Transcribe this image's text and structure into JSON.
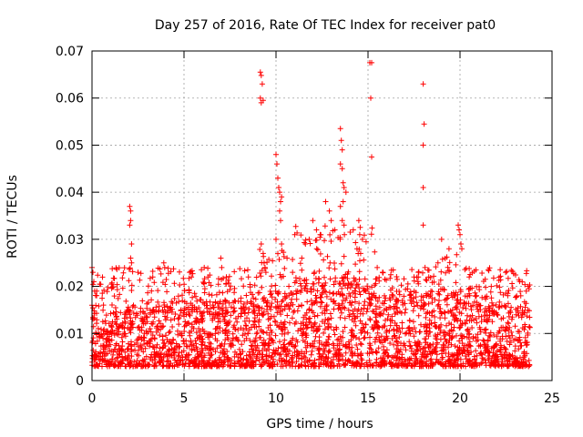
{
  "chart_data": {
    "type": "scatter",
    "title": "Day 257 of 2016, Rate Of TEC Index for receiver pat0",
    "xlabel": "GPS time / hours",
    "ylabel": "ROTI / TECUs",
    "xlim": [
      0,
      25
    ],
    "ylim": [
      0,
      0.07
    ],
    "x_ticks": [
      0,
      5,
      10,
      15,
      20,
      25
    ],
    "x_tick_labels": [
      "0",
      "5",
      "10",
      "15",
      "20",
      "25"
    ],
    "y_ticks": [
      0,
      0.01,
      0.02,
      0.03,
      0.04,
      0.05,
      0.06,
      0.07
    ],
    "y_tick_labels": [
      "0",
      "0.01",
      "0.02",
      "0.03",
      "0.04",
      "0.05",
      "0.06",
      "0.07"
    ],
    "grid": true,
    "marker": "+",
    "color": "#ff0000",
    "series": [
      {
        "name": "ROTI",
        "points": [
          [
            0.0,
            0.024
          ],
          [
            0.05,
            0.023
          ],
          [
            0.1,
            0.021
          ],
          [
            0.0,
            0.016
          ],
          [
            2.05,
            0.037
          ],
          [
            2.1,
            0.036
          ],
          [
            2.1,
            0.034
          ],
          [
            2.05,
            0.033
          ],
          [
            2.15,
            0.029
          ],
          [
            2.1,
            0.026
          ],
          [
            2.15,
            0.025
          ],
          [
            3.3,
            0.022
          ],
          [
            3.9,
            0.025
          ],
          [
            3.95,
            0.024
          ],
          [
            5.3,
            0.023
          ],
          [
            5.4,
            0.022
          ],
          [
            6.1,
            0.024
          ],
          [
            6.3,
            0.022
          ],
          [
            7.0,
            0.026
          ],
          [
            7.05,
            0.024
          ],
          [
            7.3,
            0.022
          ],
          [
            8.5,
            0.022
          ],
          [
            9.15,
            0.0655
          ],
          [
            9.2,
            0.0648
          ],
          [
            9.25,
            0.063
          ],
          [
            9.15,
            0.06
          ],
          [
            9.2,
            0.059
          ],
          [
            9.3,
            0.0595
          ],
          [
            9.2,
            0.029
          ],
          [
            9.3,
            0.027
          ],
          [
            9.35,
            0.025
          ],
          [
            9.4,
            0.024
          ],
          [
            9.45,
            0.023
          ],
          [
            10.0,
            0.048
          ],
          [
            10.05,
            0.046
          ],
          [
            10.1,
            0.043
          ],
          [
            10.15,
            0.041
          ],
          [
            10.2,
            0.04
          ],
          [
            10.3,
            0.039
          ],
          [
            10.25,
            0.038
          ],
          [
            10.2,
            0.036
          ],
          [
            10.25,
            0.034
          ],
          [
            10.0,
            0.03
          ],
          [
            10.3,
            0.029
          ],
          [
            10.6,
            0.026
          ],
          [
            10.9,
            0.023
          ],
          [
            11.4,
            0.026
          ],
          [
            11.6,
            0.029
          ],
          [
            11.8,
            0.03
          ],
          [
            12.0,
            0.034
          ],
          [
            12.2,
            0.032
          ],
          [
            12.4,
            0.031
          ],
          [
            12.7,
            0.038
          ],
          [
            12.9,
            0.036
          ],
          [
            13.0,
            0.034
          ],
          [
            13.2,
            0.032
          ],
          [
            13.5,
            0.0535
          ],
          [
            13.55,
            0.051
          ],
          [
            13.6,
            0.049
          ],
          [
            13.5,
            0.046
          ],
          [
            13.6,
            0.045
          ],
          [
            13.65,
            0.042
          ],
          [
            13.7,
            0.041
          ],
          [
            13.8,
            0.04
          ],
          [
            13.65,
            0.038
          ],
          [
            13.5,
            0.037
          ],
          [
            13.6,
            0.034
          ],
          [
            13.7,
            0.033
          ],
          [
            14.2,
            0.032
          ],
          [
            14.5,
            0.034
          ],
          [
            14.55,
            0.031
          ],
          [
            14.7,
            0.03
          ],
          [
            14.4,
            0.028
          ],
          [
            14.6,
            0.027
          ],
          [
            15.1,
            0.0675
          ],
          [
            15.2,
            0.0675
          ],
          [
            15.15,
            0.06
          ],
          [
            15.2,
            0.0475
          ],
          [
            15.5,
            0.024
          ],
          [
            15.8,
            0.023
          ],
          [
            17.5,
            0.022
          ],
          [
            18.0,
            0.063
          ],
          [
            18.05,
            0.0545
          ],
          [
            18.0,
            0.05
          ],
          [
            18.0,
            0.041
          ],
          [
            18.0,
            0.033
          ],
          [
            18.1,
            0.024
          ],
          [
            18.3,
            0.022
          ],
          [
            18.8,
            0.025
          ],
          [
            19.0,
            0.03
          ],
          [
            19.4,
            0.028
          ],
          [
            19.9,
            0.033
          ],
          [
            19.95,
            0.032
          ],
          [
            20.0,
            0.031
          ],
          [
            20.05,
            0.029
          ],
          [
            20.1,
            0.028
          ],
          [
            20.5,
            0.022
          ],
          [
            21.7,
            0.02
          ],
          [
            23.3,
            0.018
          ],
          [
            23.6,
            0.019
          ],
          [
            23.7,
            0.02
          ],
          [
            23.75,
            0.0195
          ]
        ]
      }
    ]
  }
}
